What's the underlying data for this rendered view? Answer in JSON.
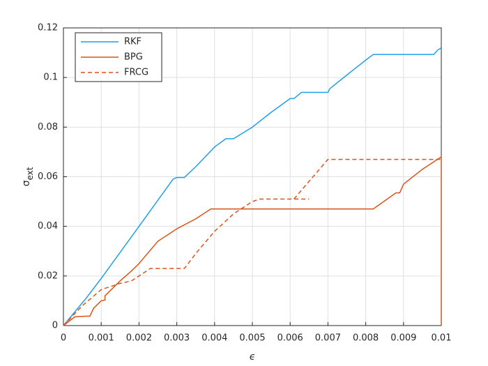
{
  "chart_data": {
    "type": "line",
    "xlabel": "ϵ",
    "ylabel": "σ",
    "ylabel_sub": "ext",
    "xlim": [
      0,
      0.01
    ],
    "xticks": [
      0,
      0.001,
      0.002,
      0.003,
      0.004,
      0.005,
      0.006,
      0.007,
      0.008,
      0.009,
      0.01
    ],
    "ylim": [
      0,
      0.12
    ],
    "yticks": [
      0,
      0.02,
      0.04,
      0.06,
      0.08,
      0.1,
      0.12
    ],
    "grid": true,
    "legend": "upper-left",
    "series": [
      {
        "name": "RKF",
        "color": "#1f9fe8",
        "dash": false,
        "x": [
          0,
          0.0006,
          0.00065,
          0.001,
          0.002,
          0.0029,
          0.003,
          0.0032,
          0.0035,
          0.004,
          0.0043,
          0.0045,
          0.005,
          0.0055,
          0.006,
          0.0061,
          0.0063,
          0.007,
          0.00705,
          0.0075,
          0.008,
          0.0082,
          0.0098,
          0.0099,
          0.01
        ],
        "values": [
          0,
          0.011,
          0.012,
          0.019,
          0.04,
          0.059,
          0.0597,
          0.0597,
          0.064,
          0.072,
          0.0753,
          0.0753,
          0.08,
          0.086,
          0.0915,
          0.0915,
          0.094,
          0.094,
          0.0955,
          0.101,
          0.107,
          0.1093,
          0.1093,
          0.111,
          0.112
        ]
      },
      {
        "name": "BPG",
        "color": "#d95319",
        "dash": false,
        "x": [
          0,
          0.0003,
          0.0006,
          0.0007,
          0.0008,
          0.001,
          0.0011,
          0.0011,
          0.0015,
          0.0018,
          0.002,
          0.0025,
          0.003,
          0.0035,
          0.0039,
          0.0082,
          0.0088,
          0.0089,
          0.009,
          0.0095,
          0.01,
          0.01
        ],
        "values": [
          0,
          0.0035,
          0.0038,
          0.0038,
          0.007,
          0.01,
          0.0103,
          0.012,
          0.018,
          0.022,
          0.025,
          0.034,
          0.039,
          0.043,
          0.047,
          0.047,
          0.0535,
          0.0535,
          0.057,
          0.063,
          0.068,
          0
        ]
      },
      {
        "name": "FRCG",
        "color": "#d95319",
        "dash": true,
        "x": [
          0,
          0.0005,
          0.001,
          0.0012,
          0.0015,
          0.0018,
          0.002,
          0.0023,
          0.0032,
          0.0035,
          0.004,
          0.0045,
          0.005,
          0.0052,
          0.0065,
          null,
          0.0061,
          0.007,
          0.01
        ],
        "values": [
          0,
          0.008,
          0.0145,
          0.0155,
          0.017,
          0.018,
          0.02,
          0.023,
          0.023,
          0.029,
          0.038,
          0.045,
          0.05,
          0.051,
          0.051,
          null,
          0.051,
          0.067,
          0.067
        ]
      }
    ]
  }
}
